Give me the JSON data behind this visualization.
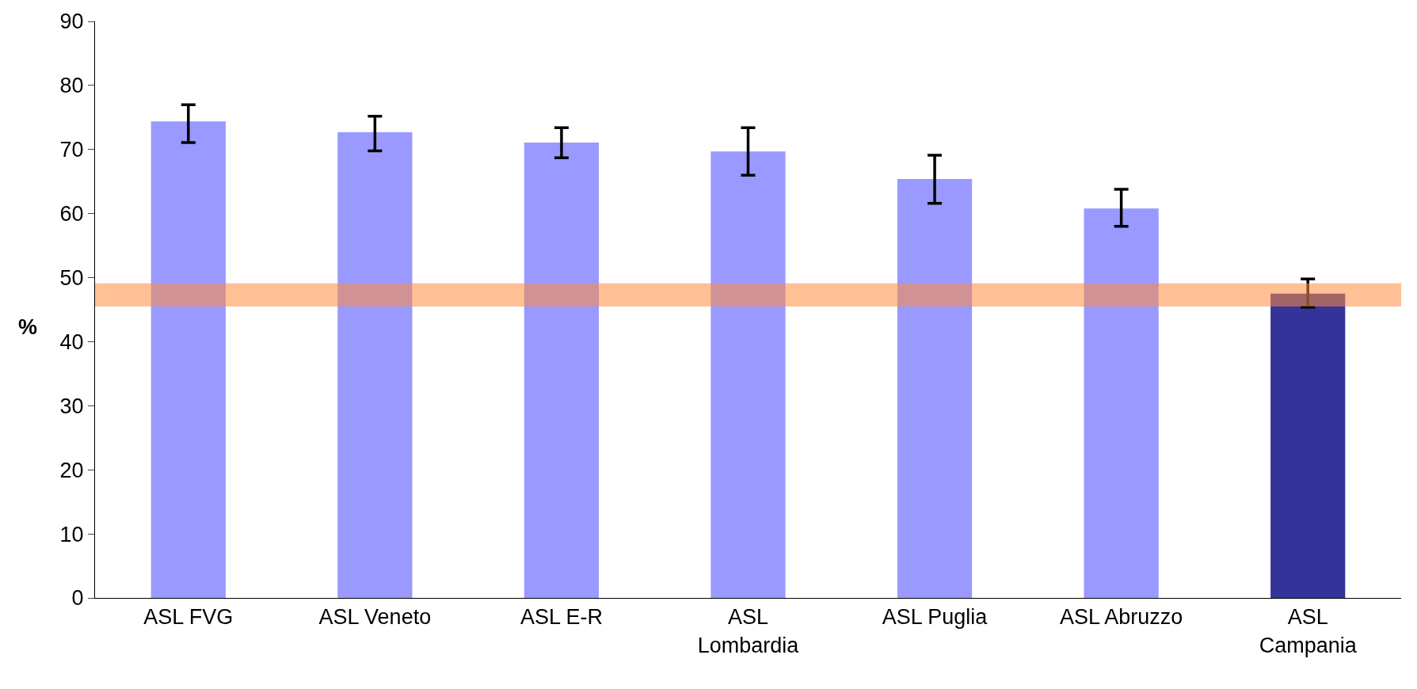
{
  "chart_data": {
    "type": "bar",
    "ylabel": "%",
    "categories": [
      "ASL FVG",
      "ASL Veneto",
      "ASL E-R",
      "ASL Lombardia",
      "ASL Puglia",
      "ASL Abruzzo",
      "ASL Campania"
    ],
    "values": [
      74.4,
      72.7,
      71.1,
      69.7,
      65.4,
      60.8,
      47.5
    ],
    "colors": [
      "#9999ff",
      "#9999ff",
      "#9999ff",
      "#9999ff",
      "#9999ff",
      "#9999ff",
      "#333399"
    ],
    "errors": [
      [
        71.1,
        77.0
      ],
      [
        69.8,
        75.2
      ],
      [
        68.7,
        73.4
      ],
      [
        66.0,
        73.4
      ],
      [
        61.6,
        69.1
      ],
      [
        58.0,
        63.8
      ],
      [
        45.4,
        49.8
      ]
    ],
    "ylim": [
      0,
      90
    ],
    "yticks": [
      0,
      10,
      20,
      30,
      40,
      50,
      60,
      70,
      80,
      90
    ],
    "bands": [
      {
        "axis": "y",
        "from": 45.5,
        "to": 49.1,
        "color": "#ff8c40"
      }
    ]
  }
}
